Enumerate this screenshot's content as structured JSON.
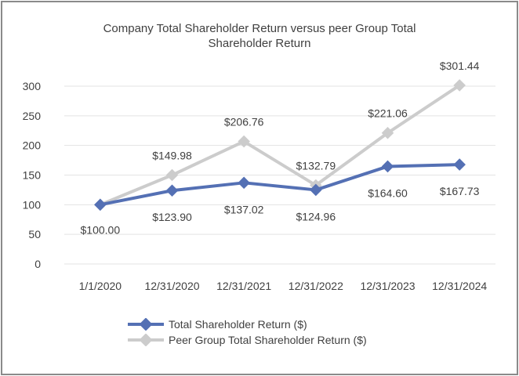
{
  "chart_data": {
    "type": "line",
    "title_line1": "Company Total Shareholder Return versus peer Group Total",
    "title_line2": "Shareholder Return",
    "categories": [
      "1/1/2020",
      "12/31/2020",
      "12/31/2021",
      "12/31/2022",
      "12/31/2023",
      "12/31/2024"
    ],
    "y_ticks": [
      "0",
      "50",
      "100",
      "150",
      "200",
      "250",
      "300"
    ],
    "ylim": [
      0,
      300
    ],
    "grid": true,
    "legend_position": "bottom",
    "series": [
      {
        "name": "Total Shareholder Return ($)",
        "values": [
          100.0,
          123.9,
          137.02,
          124.96,
          164.6,
          167.73
        ],
        "labels": [
          "$100.00",
          "$123.90",
          "$137.02",
          "$124.96",
          "$164.60",
          "$167.73"
        ],
        "color": "#5470b4"
      },
      {
        "name": "Peer Group Total Shareholder Return ($)",
        "values": [
          100.0,
          149.98,
          206.76,
          132.79,
          221.06,
          301.44
        ],
        "labels": [
          "",
          "$149.98",
          "$206.76",
          "$132.79",
          "$221.06",
          "$301.44"
        ],
        "color": "#cccccc"
      }
    ]
  }
}
